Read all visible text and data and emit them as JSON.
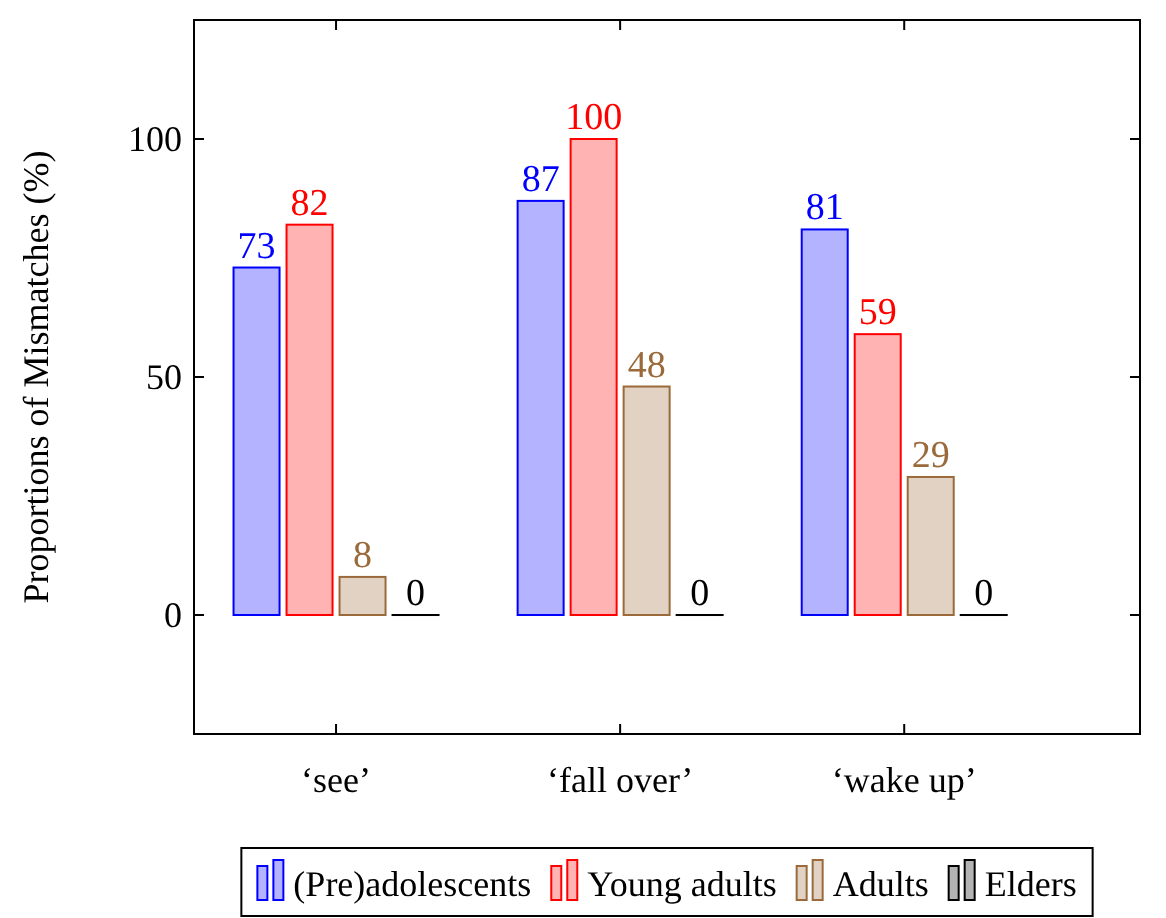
{
  "chart_data": {
    "type": "bar",
    "ylabel": "Proportions of Mismatches (%)",
    "categories": [
      "‘see’",
      "‘fall over’",
      "‘wake up’"
    ],
    "series": [
      {
        "name": "(Pre)adolescents",
        "color": "#0000ff",
        "values": [
          73,
          87,
          81
        ]
      },
      {
        "name": "Young adults",
        "color": "#ff0000",
        "values": [
          82,
          100,
          59
        ]
      },
      {
        "name": "Adults",
        "color": "#9a6a3a",
        "values": [
          8,
          48,
          29
        ]
      },
      {
        "name": "Elders",
        "color": "#000000",
        "values": [
          0,
          0,
          0
        ]
      }
    ],
    "ylim": [
      -25,
      125
    ],
    "yticks": [
      0,
      50,
      100
    ],
    "data_labels": true,
    "legend": "bottom",
    "grid": false
  }
}
